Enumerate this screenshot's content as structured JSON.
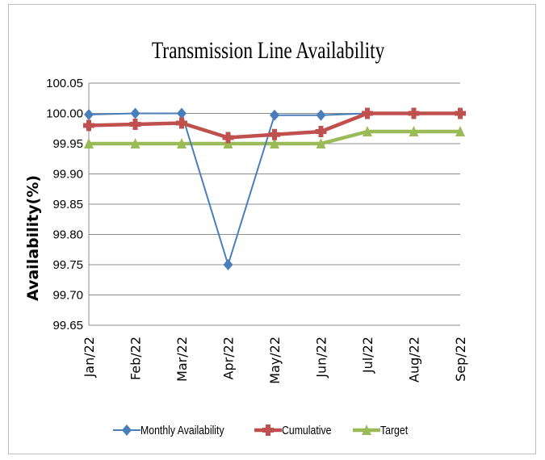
{
  "chart_data": {
    "type": "line",
    "title": "Transmission  Line Availability",
    "xlabel": "",
    "ylabel": "Availability(%)",
    "categories": [
      "Jan/22",
      "Feb/22",
      "Mar/22",
      "Apr/22",
      "May/22",
      "Jun/22",
      "Jul/22",
      "Aug/22",
      "Sep/22"
    ],
    "ylim": [
      99.65,
      100.05
    ],
    "yticks": [
      "100.05",
      "100.00",
      "99.95",
      "99.90",
      "99.85",
      "99.80",
      "99.75",
      "99.70",
      "99.65"
    ],
    "grid": true,
    "legend": "bottom",
    "series": [
      {
        "name": "Monthly Availability",
        "color": "#4a7ebb",
        "marker": "diamond",
        "values": [
          99.998,
          100.0,
          100.0,
          99.75,
          99.997,
          99.997,
          100.0,
          null,
          null
        ]
      },
      {
        "name": "Cumulative",
        "color": "#c0504d",
        "marker": "square",
        "values": [
          99.98,
          99.982,
          99.984,
          99.96,
          99.965,
          99.97,
          100.0,
          100.0,
          100.0
        ]
      },
      {
        "name": "Target",
        "color": "#9bbb59",
        "marker": "triangle",
        "values": [
          99.95,
          99.95,
          99.95,
          99.95,
          99.95,
          99.95,
          99.97,
          99.97,
          99.97
        ]
      }
    ]
  }
}
